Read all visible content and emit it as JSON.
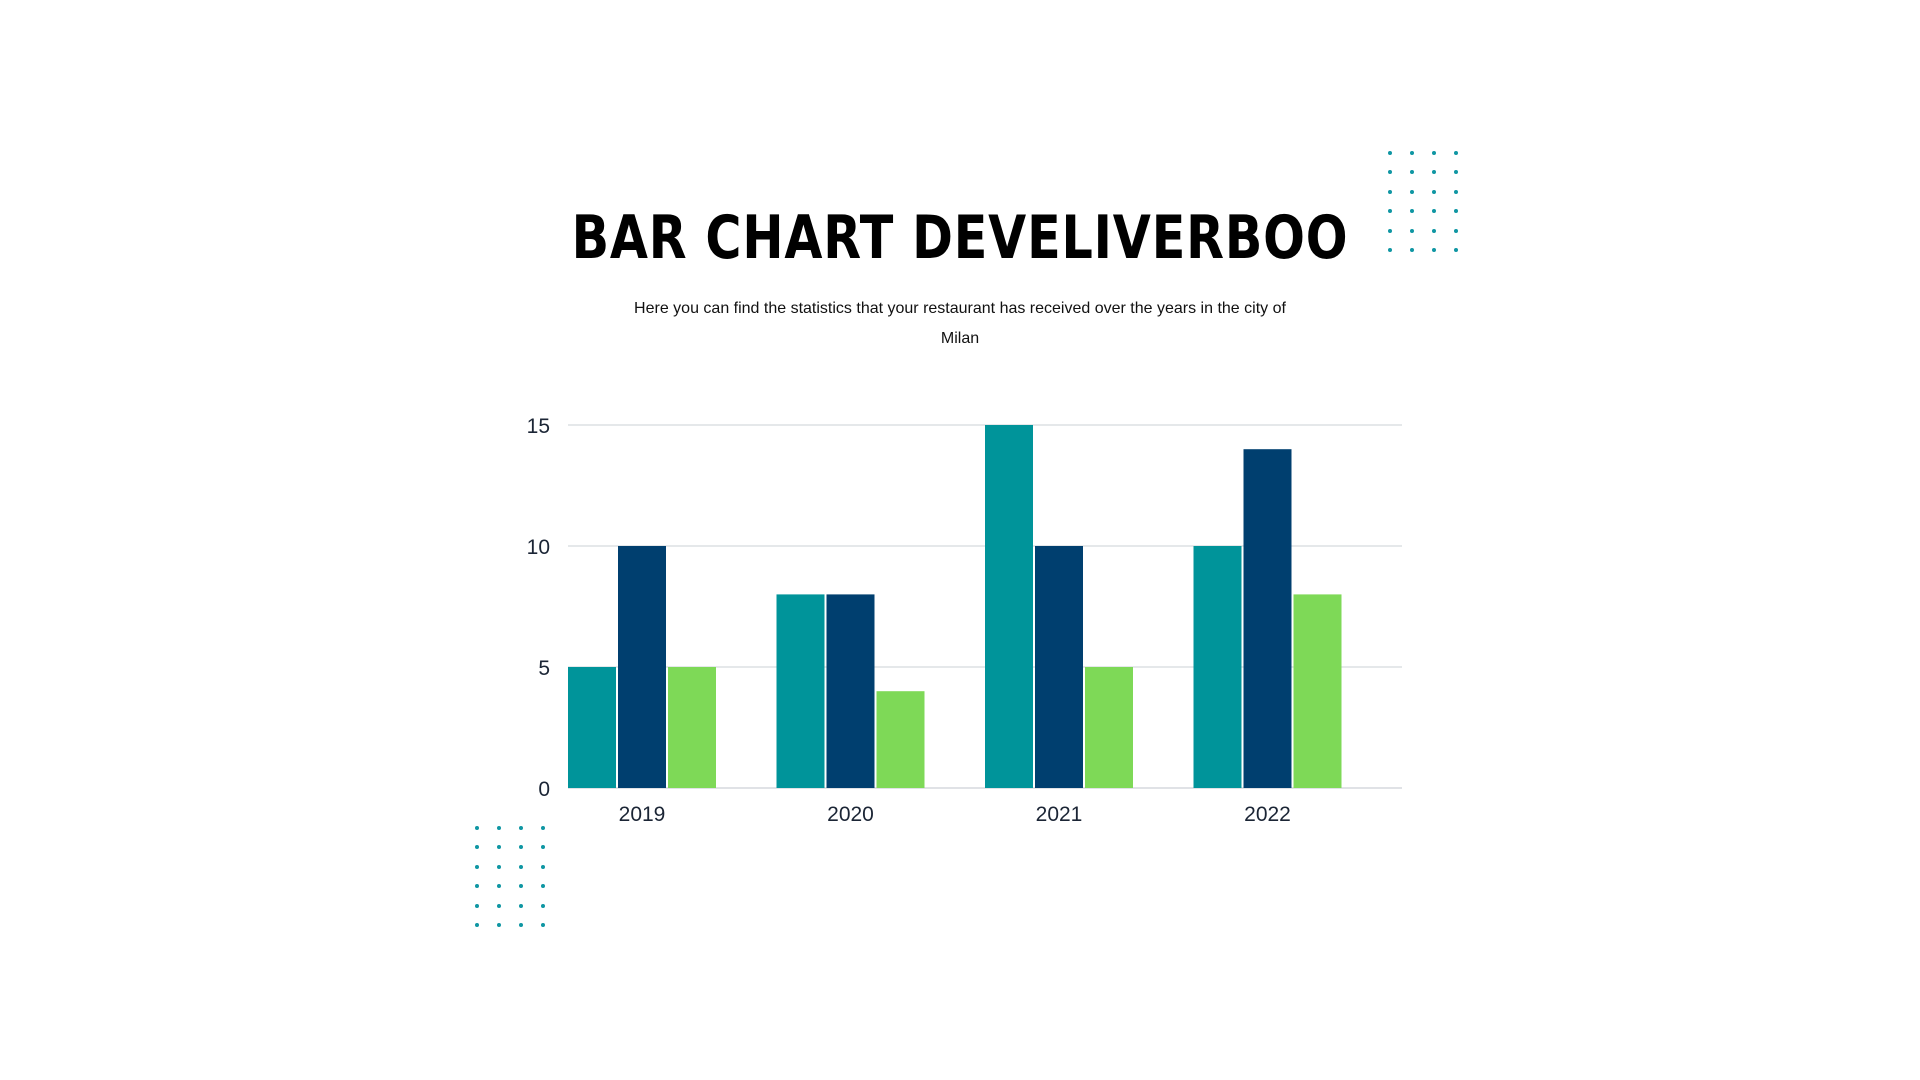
{
  "title": "BAR CHART DEVELIVERBOO",
  "subtitle": "Here you can find the statistics that your restaurant has received over the years in the city of Milan",
  "colors": {
    "series_1": "#00949A",
    "series_2": "#003F6F",
    "series_3": "#7ED957",
    "grid": "#d5d9de",
    "dots": "#0f96a3"
  },
  "chart_data": {
    "type": "bar",
    "categories": [
      "2019",
      "2020",
      "2021",
      "2022"
    ],
    "series": [
      {
        "values": [
          5,
          8,
          15,
          10
        ]
      },
      {
        "values": [
          10,
          8,
          10,
          14
        ]
      },
      {
        "values": [
          5,
          4,
          5,
          8
        ]
      }
    ],
    "yticks": [
      0,
      5,
      10,
      15
    ],
    "ylim": [
      0,
      15
    ],
    "grid": true,
    "legend": "none"
  }
}
